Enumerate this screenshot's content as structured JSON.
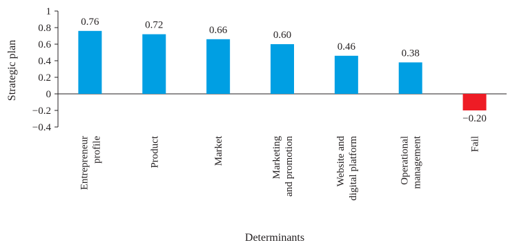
{
  "chart_data": {
    "type": "bar",
    "title": "",
    "xlabel": "Determinants",
    "ylabel": "Strategic plan",
    "ylim": [
      -0.4,
      1
    ],
    "yticks": [
      "1",
      "0.8",
      "0.6",
      "0.4",
      "0.2",
      "0",
      "−0.2",
      "−0.4"
    ],
    "ytick_values": [
      1,
      0.8,
      0.6,
      0.4,
      0.2,
      0,
      -0.2,
      -0.4
    ],
    "categories": [
      [
        "Entrepreneur",
        "profile"
      ],
      [
        "Product"
      ],
      [
        "Market"
      ],
      [
        "Marketing",
        "and promotion"
      ],
      [
        "Website and",
        "digital platform"
      ],
      [
        "Operational",
        "management"
      ],
      [
        "Fail"
      ]
    ],
    "values": [
      0.76,
      0.72,
      0.66,
      0.6,
      0.46,
      0.38,
      -0.2
    ],
    "data_labels": [
      "0.76",
      "0.72",
      "0.66",
      "0.60",
      "0.46",
      "0.38",
      "−0.20"
    ],
    "grid": false,
    "legend": "none",
    "colors": {
      "positive": "#009fe3",
      "negative": "#ee1c25",
      "axis": "#231f20",
      "text": "#231f20"
    }
  }
}
